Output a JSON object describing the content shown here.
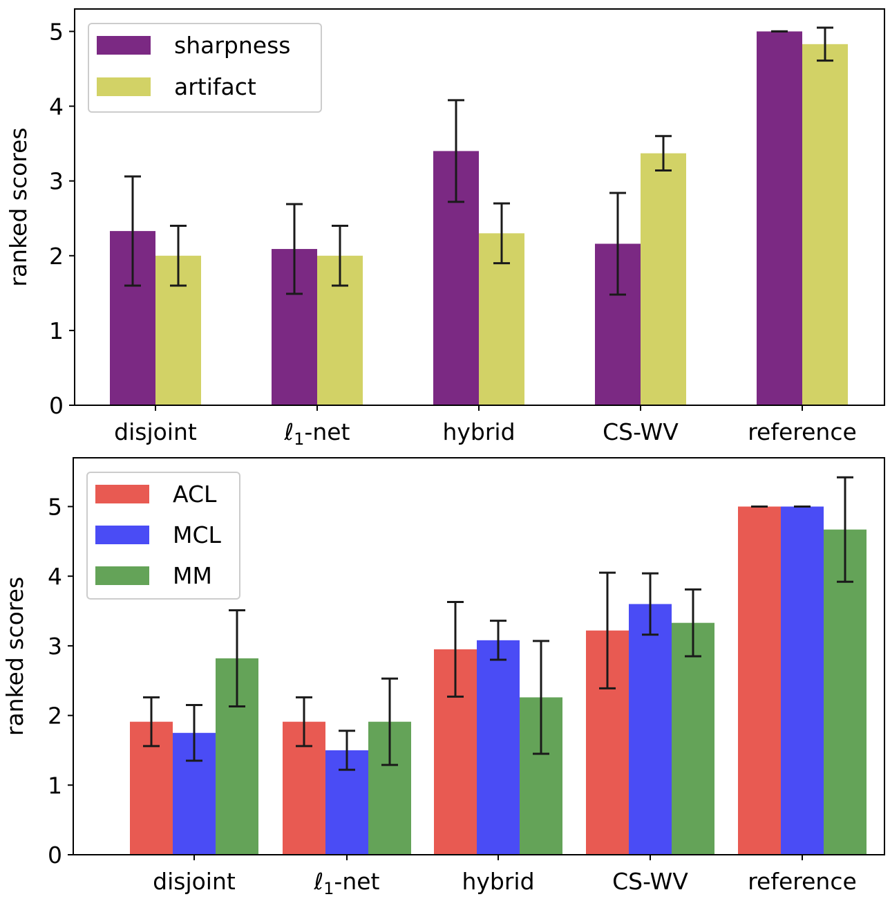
{
  "chart_data": [
    {
      "type": "bar",
      "title": "",
      "xlabel": "",
      "ylabel": "ranked scores",
      "ylim": [
        0,
        5.3
      ],
      "yticks": [
        "0",
        "1",
        "2",
        "3",
        "4",
        "5"
      ],
      "categories": [
        "disjoint",
        "ℓ1-net",
        "hybrid",
        "CS-WV",
        "reference"
      ],
      "legend_position": "top-left",
      "series": [
        {
          "name": "sharpness",
          "color": "#7b2983",
          "values": [
            2.33,
            2.09,
            3.4,
            2.16,
            5.0
          ],
          "errors": [
            0.73,
            0.6,
            0.68,
            0.68,
            0.0
          ]
        },
        {
          "name": "artifact",
          "color": "#d2d266",
          "values": [
            2.0,
            2.0,
            2.3,
            3.37,
            4.83
          ],
          "errors": [
            0.4,
            0.4,
            0.4,
            0.23,
            0.22
          ]
        }
      ]
    },
    {
      "type": "bar",
      "title": "",
      "xlabel": "",
      "ylabel": "ranked scores",
      "ylim": [
        0,
        5.7
      ],
      "yticks": [
        "0",
        "1",
        "2",
        "3",
        "4",
        "5"
      ],
      "categories": [
        "disjoint",
        "ℓ1-net",
        "hybrid",
        "CS-WV",
        "reference"
      ],
      "legend_position": "top-left",
      "series": [
        {
          "name": "ACL",
          "color": "#e85a52",
          "values": [
            1.91,
            1.91,
            2.95,
            3.22,
            5.0
          ],
          "errors": [
            0.35,
            0.35,
            0.68,
            0.83,
            0.0
          ]
        },
        {
          "name": "MCL",
          "color": "#4a4cf5",
          "values": [
            1.75,
            1.5,
            3.08,
            3.6,
            5.0
          ],
          "errors": [
            0.4,
            0.28,
            0.28,
            0.44,
            0.0
          ]
        },
        {
          "name": "MM",
          "color": "#64a358",
          "values": [
            2.82,
            1.91,
            2.26,
            3.33,
            4.67
          ],
          "errors": [
            0.69,
            0.62,
            0.81,
            0.48,
            0.75
          ]
        }
      ]
    }
  ]
}
